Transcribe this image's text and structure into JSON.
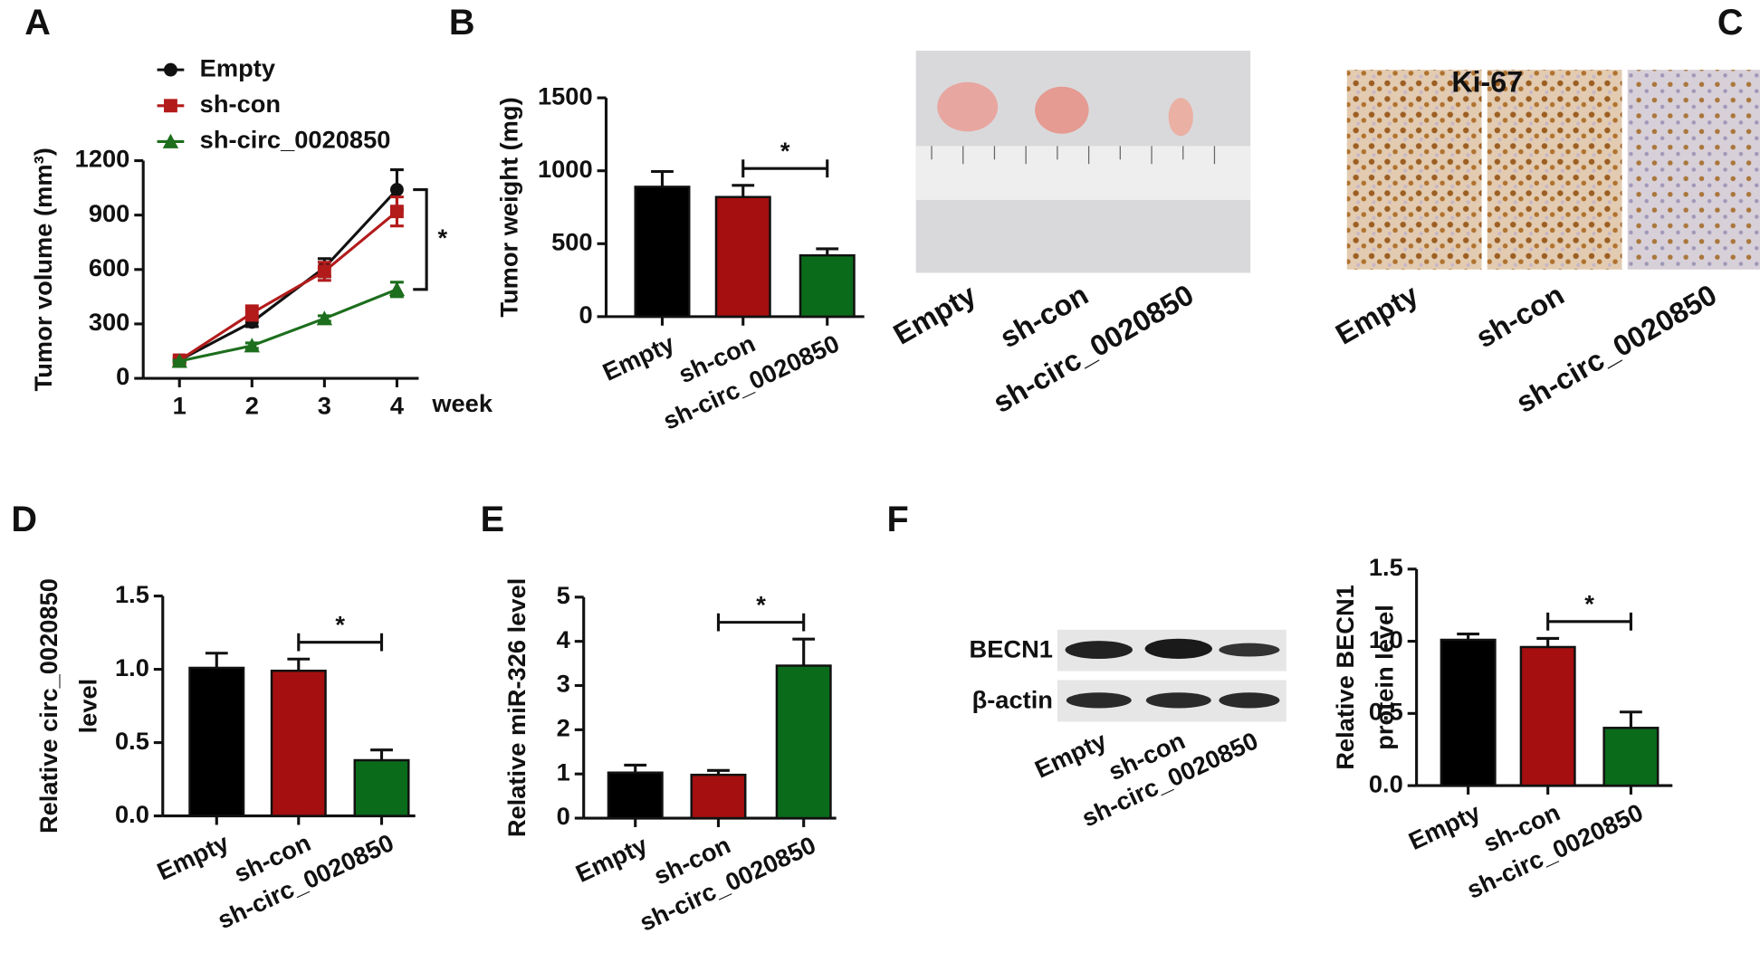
{
  "chart_data": [
    {
      "type": "line",
      "panel": "A",
      "ylabel": "Tumor volume (mm³)",
      "xlabel": "week",
      "x": [
        1,
        2,
        3,
        4
      ],
      "xlim": [
        0.5,
        4.3
      ],
      "xticks": [
        1,
        2,
        3,
        4
      ],
      "ylim": [
        0,
        1200
      ],
      "yticks": [
        0,
        300,
        600,
        900,
        1200
      ],
      "grid": false,
      "series": [
        {
          "name": "Empty",
          "color": "#111111",
          "marker": "circle",
          "values": [
            100,
            310,
            610,
            1040
          ],
          "errors": [
            10,
            25,
            50,
            110
          ]
        },
        {
          "name": "sh-con",
          "color": "#b31b1b",
          "marker": "square",
          "values": [
            100,
            360,
            590,
            920
          ],
          "errors": [
            10,
            40,
            50,
            80
          ]
        },
        {
          "name": "sh-circ_0020850",
          "color": "#1d6e1d",
          "marker": "triangle",
          "values": [
            95,
            180,
            330,
            490
          ],
          "errors": [
            5,
            15,
            15,
            40
          ]
        }
      ],
      "significance": {
        "label": "*",
        "between": [
          "Empty",
          "sh-circ_0020850"
        ]
      }
    },
    {
      "type": "bar",
      "panel": "B",
      "ylabel": "Tumor weight (mg)",
      "categories": [
        "Empty",
        "sh-con",
        "sh-circ_0020850"
      ],
      "values": [
        890,
        820,
        420
      ],
      "errors": [
        105,
        80,
        45
      ],
      "colors": [
        "#000000",
        "#a50f0f",
        "#0a6b1a"
      ],
      "ylim": [
        0,
        1500
      ],
      "yticks": [
        0,
        500,
        1000,
        1500
      ],
      "grid": false,
      "significance": {
        "label": "*",
        "between": [
          "sh-con",
          "sh-circ_0020850"
        ]
      }
    },
    {
      "type": "bar",
      "panel": "D",
      "ylabel": [
        "Relative circ_0020850",
        "level"
      ],
      "categories": [
        "Empty",
        "sh-con",
        "sh-circ_0020850"
      ],
      "values": [
        1.01,
        0.99,
        0.38
      ],
      "errors": [
        0.1,
        0.08,
        0.07
      ],
      "colors": [
        "#000000",
        "#a50f0f",
        "#0a6b1a"
      ],
      "ylim": [
        0,
        1.5
      ],
      "yticks": [
        {
          "value": 0,
          "label": "0.0"
        },
        0.5,
        {
          "value": 1,
          "label": "1.0"
        },
        1.5
      ],
      "grid": false,
      "significance": {
        "label": "*",
        "between": [
          "sh-con",
          "sh-circ_0020850"
        ]
      }
    },
    {
      "type": "bar",
      "panel": "E",
      "ylabel": "Relative miR-326 level",
      "categories": [
        "Empty",
        "sh-con",
        "sh-circ_0020850"
      ],
      "values": [
        1.03,
        0.98,
        3.45
      ],
      "errors": [
        0.17,
        0.1,
        0.6
      ],
      "colors": [
        "#000000",
        "#a50f0f",
        "#0a6b1a"
      ],
      "ylim": [
        0,
        5
      ],
      "yticks": [
        0,
        1,
        2,
        3,
        4,
        5
      ],
      "grid": false,
      "significance": {
        "label": "*",
        "between": [
          "sh-con",
          "sh-circ_0020850"
        ]
      }
    },
    {
      "type": "bar",
      "panel": "F",
      "ylabel": [
        "Relative BECN1",
        "protein level"
      ],
      "categories": [
        "Empty",
        "sh-con",
        "sh-circ_0020850"
      ],
      "values": [
        1.01,
        0.96,
        0.4
      ],
      "errors": [
        0.04,
        0.06,
        0.11
      ],
      "colors": [
        "#000000",
        "#a50f0f",
        "#0a6b1a"
      ],
      "ylim": [
        0,
        1.5
      ],
      "yticks": [
        {
          "value": 0,
          "label": "0.0"
        },
        0.5,
        {
          "value": 1,
          "label": "1.0"
        },
        1.5
      ],
      "grid": false,
      "significance": {
        "label": "*",
        "between": [
          "sh-con",
          "sh-circ_0020850"
        ]
      }
    }
  ],
  "tumor_photo": {
    "labels": [
      "Empty",
      "sh-con",
      "sh-circ_0020850"
    ]
  },
  "ki67": {
    "panel": "C",
    "title": "Ki-67",
    "labels": [
      "Empty",
      "sh-con",
      "sh-circ_0020850"
    ]
  },
  "blot": {
    "rows": [
      "BECN1",
      "β-actin"
    ],
    "labels": [
      "Empty",
      "sh-con",
      "sh-circ_0020850"
    ]
  }
}
